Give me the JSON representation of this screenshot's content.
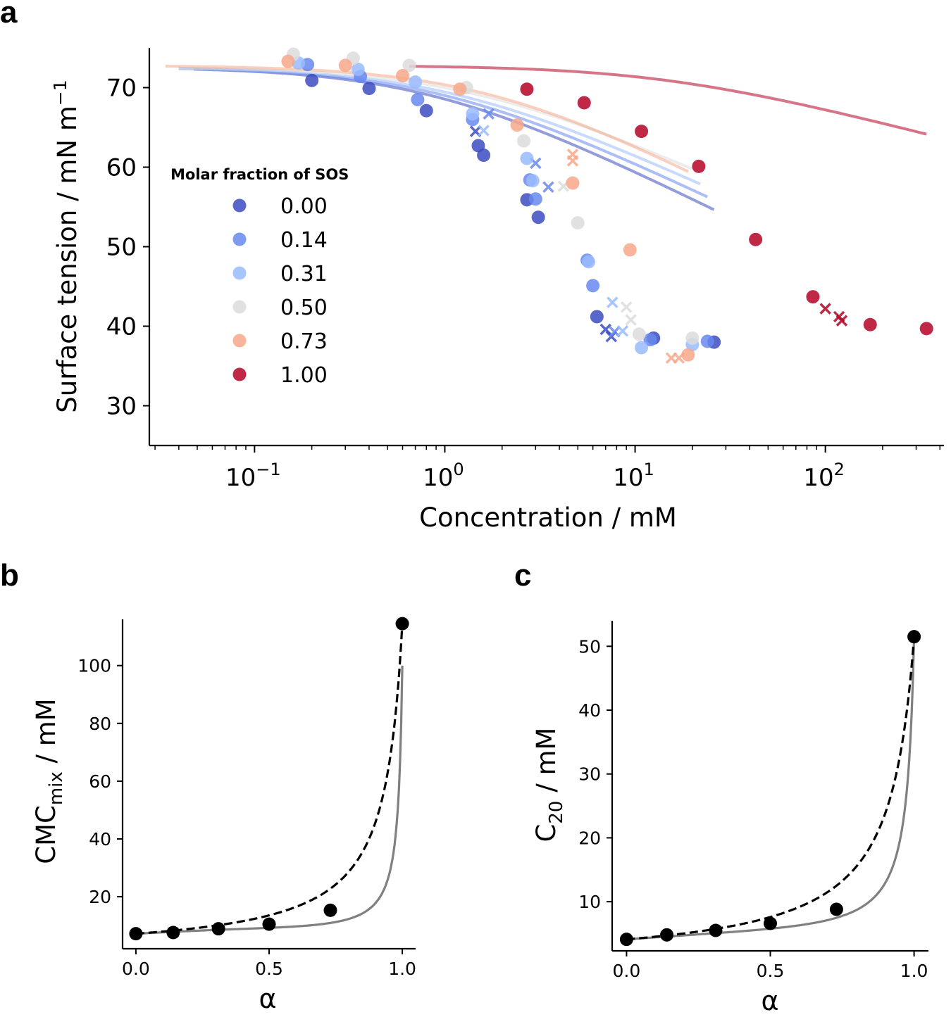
{
  "panels": {
    "a": "a",
    "b": "b",
    "c": "c"
  },
  "chart_data": [
    {
      "id": "a",
      "type": "scatter",
      "xscale": "log",
      "xlabel": "Concentration / mM",
      "ylabel": "Surface tension / mN m",
      "ylabel_sup": "−1",
      "xlim": [
        0.028,
        420
      ],
      "ylim": [
        25,
        75
      ],
      "xticks": [
        {
          "value": 0.1,
          "base": "10",
          "exp": "−1"
        },
        {
          "value": 1,
          "base": "10",
          "exp": "0"
        },
        {
          "value": 10,
          "base": "10",
          "exp": "1"
        },
        {
          "value": 100,
          "base": "10",
          "exp": "2"
        }
      ],
      "yticks": [
        30,
        40,
        50,
        60,
        70
      ],
      "legend_title": "Molar fraction of SOS",
      "legend_position": "left",
      "series": [
        {
          "name": "0.00",
          "color": "#3b4cc0",
          "fit": {
            "g0": 72.6,
            "cmc": 6.8,
            "k": 5.2,
            "gmin": 38.0,
            "xstart": 0.048,
            "xend": 26
          },
          "points": [
            [
              0.2,
              70.9
            ],
            [
              0.4,
              69.9
            ],
            [
              0.8,
              67.1
            ],
            [
              1.5,
              62.7
            ],
            [
              1.6,
              61.5
            ],
            [
              2.7,
              55.9
            ],
            [
              3.1,
              53.7
            ],
            [
              6.3,
              41.2
            ],
            [
              12.5,
              38.5
            ],
            [
              26,
              38.0
            ]
          ],
          "crosses": [
            [
              1.45,
              64.5
            ],
            [
              7.0,
              39.6
            ],
            [
              7.5,
              38.7
            ]
          ]
        },
        {
          "name": "0.14",
          "color": "#6788ee",
          "fit": {
            "g0": 72.6,
            "cmc": 7.6,
            "k": 5.0,
            "gmin": 38.0,
            "xstart": 0.04,
            "xend": 24
          },
          "points": [
            [
              0.19,
              72.9
            ],
            [
              0.36,
              71.4
            ],
            [
              0.72,
              68.5
            ],
            [
              1.4,
              66.0
            ],
            [
              2.8,
              58.4
            ],
            [
              3.0,
              56.0
            ],
            [
              5.6,
              48.3
            ],
            [
              6.0,
              45.1
            ],
            [
              12.0,
              38.3
            ],
            [
              24,
              38.1
            ]
          ],
          "crosses": [
            [
              1.7,
              66.7
            ],
            [
              3.0,
              60.5
            ],
            [
              3.5,
              57.5
            ],
            [
              7.8,
              39.3
            ]
          ]
        },
        {
          "name": "0.31",
          "color": "#9abbff",
          "fit": {
            "g0": 72.6,
            "cmc": 8.6,
            "k": 4.8,
            "gmin": 38.0,
            "xstart": 0.04,
            "xend": 22
          },
          "points": [
            [
              0.17,
              73.1
            ],
            [
              0.35,
              72.3
            ],
            [
              0.7,
              70.7
            ],
            [
              1.4,
              66.7
            ],
            [
              2.7,
              61.1
            ],
            [
              2.9,
              58.3
            ],
            [
              5.7,
              48.1
            ],
            [
              10.8,
              37.3
            ],
            [
              20,
              37.7
            ]
          ],
          "crosses": [
            [
              1.6,
              64.6
            ],
            [
              7.6,
              43.0
            ],
            [
              8.6,
              39.4
            ]
          ]
        },
        {
          "name": "0.50",
          "color": "#dddcdc",
          "fit": {
            "g0": 72.6,
            "cmc": 10.5,
            "k": 4.6,
            "gmin": 38.6,
            "xstart": 0.04,
            "xend": 20
          },
          "points": [
            [
              0.16,
              74.2
            ],
            [
              0.33,
              73.7
            ],
            [
              0.65,
              72.8
            ],
            [
              1.3,
              70.0
            ],
            [
              2.6,
              63.3
            ],
            [
              5.0,
              53.0
            ],
            [
              10.5,
              39.0
            ],
            [
              20,
              38.5
            ]
          ],
          "crosses": [
            [
              4.2,
              57.6
            ],
            [
              9.0,
              42.4
            ],
            [
              9.5,
              40.8
            ]
          ]
        },
        {
          "name": "0.73",
          "color": "#f7a889",
          "fit": {
            "g0": 72.8,
            "cmc": 14.0,
            "k": 5.4,
            "gmin": 36.1,
            "xstart": 0.034,
            "xend": 19
          },
          "points": [
            [
              0.15,
              73.3
            ],
            [
              0.3,
              72.8
            ],
            [
              0.6,
              71.5
            ],
            [
              1.2,
              69.8
            ],
            [
              2.4,
              65.3
            ],
            [
              4.7,
              58.0
            ],
            [
              9.4,
              49.6
            ],
            [
              19,
              36.4
            ]
          ],
          "crosses": [
            [
              4.7,
              61.6
            ],
            [
              4.7,
              60.8
            ],
            [
              15.5,
              36.0
            ],
            [
              17.0,
              36.0
            ]
          ]
        },
        {
          "name": "1.00",
          "color": "#b40426",
          "fit": {
            "g0": 72.8,
            "cmc": 115,
            "k": 2.7,
            "gmin": 40.3,
            "xstart": 0.65,
            "xend": 340
          },
          "points": [
            [
              2.7,
              69.8
            ],
            [
              5.4,
              68.1
            ],
            [
              10.8,
              64.5
            ],
            [
              21.6,
              60.1
            ],
            [
              43,
              50.9
            ],
            [
              86,
              43.7
            ],
            [
              172,
              40.2
            ],
            [
              340,
              39.7
            ]
          ],
          "crosses": [
            [
              100,
              42.2
            ],
            [
              118,
              41.2
            ],
            [
              122,
              40.7
            ]
          ]
        }
      ]
    },
    {
      "id": "b",
      "type": "line",
      "xlabel": "α",
      "ylabel": "CMC",
      "ylabel_sub": "mix",
      "ylabel_suffix": " / mM",
      "xlim": [
        -0.05,
        1.05
      ],
      "ylim": [
        2,
        116
      ],
      "xticks": [
        "0.0",
        "0.5",
        "1.0"
      ],
      "yticks": [
        20,
        40,
        60,
        80,
        100
      ],
      "points": [
        [
          0.0,
          7.2
        ],
        [
          0.14,
          7.6
        ],
        [
          0.31,
          8.9
        ],
        [
          0.5,
          10.5
        ],
        [
          0.73,
          15.3
        ],
        [
          1.0,
          114.5
        ]
      ],
      "dashed_fit": {
        "c1": 7.2,
        "c2": 114.5,
        "beta": 0
      },
      "solid_fit": {
        "c1": 7.2,
        "c2": 100,
        "beta": -1.5
      }
    },
    {
      "id": "c",
      "type": "line",
      "xlabel": "α",
      "ylabel": "C",
      "ylabel_sub": "20",
      "ylabel_suffix": " / mM",
      "xlim": [
        -0.05,
        1.05
      ],
      "ylim": [
        2.3,
        54
      ],
      "xticks": [
        "0.0",
        "0.5",
        "1.0"
      ],
      "yticks": [
        10,
        20,
        30,
        40,
        50
      ],
      "points": [
        [
          0.0,
          4.1
        ],
        [
          0.14,
          4.8
        ],
        [
          0.31,
          5.5
        ],
        [
          0.5,
          6.6
        ],
        [
          0.73,
          8.8
        ],
        [
          1.0,
          51.5
        ]
      ],
      "dashed_fit": {
        "c1": 4.1,
        "c2": 51.5,
        "beta": 0
      },
      "solid_fit": {
        "c1": 4.1,
        "c2": 51.5,
        "beta": -1.1
      }
    }
  ]
}
